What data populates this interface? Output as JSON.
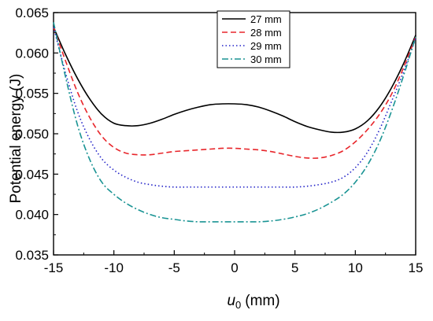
{
  "chart_data": {
    "type": "line",
    "title": "",
    "xlabel": "u",
    "xlabel_sub": "0",
    "xlabel_unit": "(mm)",
    "ylabel": "Potential energy (J)",
    "xlim": [
      -15,
      15
    ],
    "ylim": [
      0.035,
      0.065
    ],
    "xticks": [
      -15,
      -10,
      -5,
      0,
      5,
      10,
      15
    ],
    "yticks": [
      "0.035",
      "0.040",
      "0.045",
      "0.050",
      "0.055",
      "0.060",
      "0.065"
    ],
    "grid": false,
    "legend_position": "top-center",
    "series": [
      {
        "name": "27 mm",
        "color": "#000000",
        "dash": "solid",
        "x": [
          -15,
          -14,
          -13,
          -12,
          -11,
          -10,
          -9,
          -8,
          -7,
          -6,
          -5,
          -4,
          -3,
          -2,
          -1,
          0,
          1,
          2,
          3,
          4,
          5,
          6,
          7,
          8,
          9,
          10,
          11,
          12,
          13,
          14,
          15
        ],
        "y": [
          0.0632,
          0.0598,
          0.0568,
          0.0543,
          0.0524,
          0.0513,
          0.051,
          0.051,
          0.0513,
          0.0518,
          0.0524,
          0.0529,
          0.0533,
          0.0536,
          0.0537,
          0.0537,
          0.0536,
          0.0533,
          0.0528,
          0.0522,
          0.0515,
          0.0509,
          0.0505,
          0.0502,
          0.0502,
          0.0506,
          0.0516,
          0.0533,
          0.0557,
          0.0587,
          0.0622
        ]
      },
      {
        "name": "28 mm",
        "color": "#e8262b",
        "dash": "dashed",
        "x": [
          -15,
          -14,
          -13,
          -12,
          -11,
          -10,
          -9,
          -8,
          -7,
          -6,
          -5,
          -4,
          -3,
          -2,
          -1,
          0,
          1,
          2,
          3,
          4,
          5,
          6,
          7,
          8,
          9,
          10,
          11,
          12,
          13,
          14,
          15
        ],
        "y": [
          0.0632,
          0.059,
          0.0551,
          0.052,
          0.0497,
          0.0483,
          0.0476,
          0.0474,
          0.0474,
          0.0476,
          0.0478,
          0.0479,
          0.048,
          0.0481,
          0.0482,
          0.0482,
          0.0481,
          0.048,
          0.0478,
          0.0475,
          0.0472,
          0.047,
          0.047,
          0.0473,
          0.0479,
          0.049,
          0.0505,
          0.0524,
          0.0549,
          0.0582,
          0.062
        ]
      },
      {
        "name": "29 mm",
        "color": "#2222c8",
        "dash": "dotted",
        "x": [
          -15,
          -14,
          -13,
          -12,
          -11,
          -10,
          -9,
          -8,
          -7,
          -6,
          -5,
          -4,
          -3,
          -2,
          -1,
          0,
          1,
          2,
          3,
          4,
          5,
          6,
          7,
          8,
          9,
          10,
          11,
          12,
          13,
          14,
          15
        ],
        "y": [
          0.0632,
          0.0575,
          0.0527,
          0.0493,
          0.0469,
          0.0455,
          0.0446,
          0.044,
          0.0437,
          0.0435,
          0.0434,
          0.0434,
          0.0434,
          0.0434,
          0.0434,
          0.0434,
          0.0434,
          0.0434,
          0.0434,
          0.0434,
          0.0434,
          0.0435,
          0.0437,
          0.044,
          0.0446,
          0.0458,
          0.0477,
          0.0505,
          0.054,
          0.0577,
          0.0618
        ]
      },
      {
        "name": "30 mm",
        "color": "#1a9494",
        "dash": "dashdot",
        "x": [
          -15,
          -14,
          -13,
          -12,
          -11,
          -10,
          -9,
          -8,
          -7,
          -6,
          -5,
          -4,
          -3,
          -2,
          -1,
          0,
          1,
          2,
          3,
          4,
          5,
          6,
          7,
          8,
          9,
          10,
          11,
          12,
          13,
          14,
          15
        ],
        "y": [
          0.0638,
          0.057,
          0.051,
          0.0468,
          0.044,
          0.0425,
          0.0414,
          0.0406,
          0.04,
          0.0396,
          0.0394,
          0.0392,
          0.0391,
          0.0391,
          0.0391,
          0.0391,
          0.0391,
          0.0391,
          0.0392,
          0.0394,
          0.0397,
          0.0401,
          0.0407,
          0.0415,
          0.0425,
          0.044,
          0.0461,
          0.049,
          0.0528,
          0.0572,
          0.062
        ]
      }
    ]
  }
}
